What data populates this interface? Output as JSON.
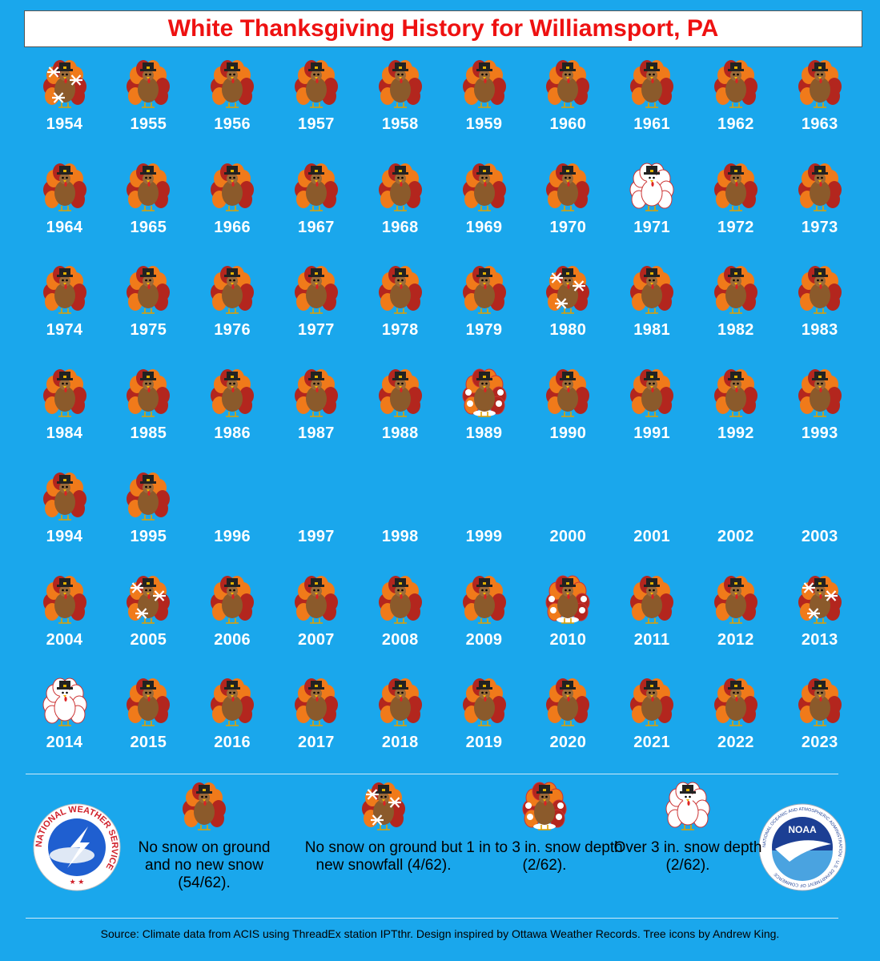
{
  "title": "White Thanksgiving History for Williamsport, PA",
  "years": [
    {
      "year": "1954",
      "cat": "snowfall"
    },
    {
      "year": "1955",
      "cat": "none"
    },
    {
      "year": "1956",
      "cat": "none"
    },
    {
      "year": "1957",
      "cat": "none"
    },
    {
      "year": "1958",
      "cat": "none"
    },
    {
      "year": "1959",
      "cat": "none"
    },
    {
      "year": "1960",
      "cat": "none"
    },
    {
      "year": "1961",
      "cat": "none"
    },
    {
      "year": "1962",
      "cat": "none"
    },
    {
      "year": "1963",
      "cat": "none"
    },
    {
      "year": "1964",
      "cat": "none"
    },
    {
      "year": "1965",
      "cat": "none"
    },
    {
      "year": "1966",
      "cat": "none"
    },
    {
      "year": "1967",
      "cat": "none"
    },
    {
      "year": "1968",
      "cat": "none"
    },
    {
      "year": "1969",
      "cat": "none"
    },
    {
      "year": "1970",
      "cat": "none"
    },
    {
      "year": "1971",
      "cat": "over3"
    },
    {
      "year": "1972",
      "cat": "none"
    },
    {
      "year": "1973",
      "cat": "none"
    },
    {
      "year": "1974",
      "cat": "none"
    },
    {
      "year": "1975",
      "cat": "none"
    },
    {
      "year": "1976",
      "cat": "none"
    },
    {
      "year": "1977",
      "cat": "none"
    },
    {
      "year": "1978",
      "cat": "none"
    },
    {
      "year": "1979",
      "cat": "none"
    },
    {
      "year": "1980",
      "cat": "snowfall"
    },
    {
      "year": "1981",
      "cat": "none"
    },
    {
      "year": "1982",
      "cat": "none"
    },
    {
      "year": "1983",
      "cat": "none"
    },
    {
      "year": "1984",
      "cat": "none"
    },
    {
      "year": "1985",
      "cat": "none"
    },
    {
      "year": "1986",
      "cat": "none"
    },
    {
      "year": "1987",
      "cat": "none"
    },
    {
      "year": "1988",
      "cat": "none"
    },
    {
      "year": "1989",
      "cat": "depth1to3"
    },
    {
      "year": "1990",
      "cat": "none"
    },
    {
      "year": "1991",
      "cat": "none"
    },
    {
      "year": "1992",
      "cat": "none"
    },
    {
      "year": "1993",
      "cat": "none"
    },
    {
      "year": "1994",
      "cat": "none"
    },
    {
      "year": "1995",
      "cat": "none"
    },
    {
      "year": "1996",
      "cat": "missing"
    },
    {
      "year": "1997",
      "cat": "missing"
    },
    {
      "year": "1998",
      "cat": "missing"
    },
    {
      "year": "1999",
      "cat": "missing"
    },
    {
      "year": "2000",
      "cat": "missing"
    },
    {
      "year": "2001",
      "cat": "missing"
    },
    {
      "year": "2002",
      "cat": "missing"
    },
    {
      "year": "2003",
      "cat": "missing"
    },
    {
      "year": "2004",
      "cat": "none"
    },
    {
      "year": "2005",
      "cat": "snowfall"
    },
    {
      "year": "2006",
      "cat": "none"
    },
    {
      "year": "2007",
      "cat": "none"
    },
    {
      "year": "2008",
      "cat": "none"
    },
    {
      "year": "2009",
      "cat": "none"
    },
    {
      "year": "2010",
      "cat": "depth1to3"
    },
    {
      "year": "2011",
      "cat": "none"
    },
    {
      "year": "2012",
      "cat": "none"
    },
    {
      "year": "2013",
      "cat": "snowfall"
    },
    {
      "year": "2014",
      "cat": "over3"
    },
    {
      "year": "2015",
      "cat": "none"
    },
    {
      "year": "2016",
      "cat": "none"
    },
    {
      "year": "2017",
      "cat": "none"
    },
    {
      "year": "2018",
      "cat": "none"
    },
    {
      "year": "2019",
      "cat": "none"
    },
    {
      "year": "2020",
      "cat": "none"
    },
    {
      "year": "2021",
      "cat": "none"
    },
    {
      "year": "2022",
      "cat": "none"
    },
    {
      "year": "2023",
      "cat": "none"
    }
  ],
  "legend": [
    {
      "cat": "none",
      "text": "No snow on ground and no new snow (54/62)."
    },
    {
      "cat": "snowfall",
      "text": "No snow on ground but new snowfall (4/62)."
    },
    {
      "cat": "depth1to3",
      "text": "1 in to 3 in. snow depth (2/62)."
    },
    {
      "cat": "over3",
      "text": "Over 3 in. snow depth (2/62)."
    }
  ],
  "logos": {
    "nws_text": "NATIONAL WEATHER SERVICE",
    "noaa_text": "NOAA",
    "noaa_ring_text": "NATIONAL OCEANIC AND ATMOSPHERIC ADMINISTRATION · U.S. DEPARTMENT OF COMMERCE"
  },
  "footer": "Source: Climate data from ACIS using ThreadEx station IPTthr. Design inspired by Ottawa Weather Records. Tree icons by Andrew King.",
  "colors": {
    "background": "#1aa7ec",
    "title": "#ee1111",
    "turkey_body": "#8b5a2b",
    "feather_dark": "#b3261e",
    "feather_orange": "#f07a1a",
    "hat": "#222222"
  }
}
